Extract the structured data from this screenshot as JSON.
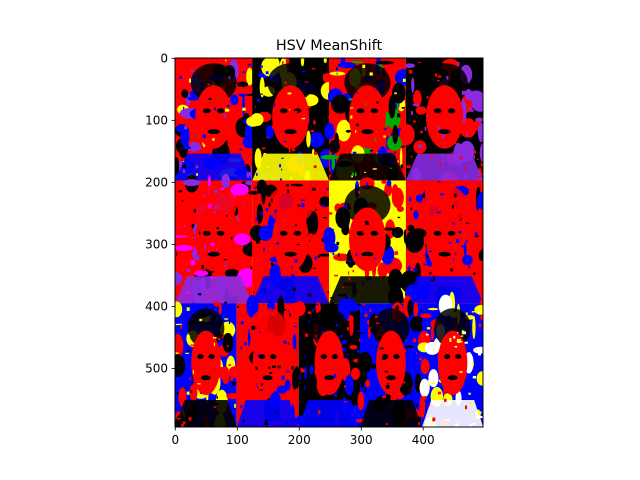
{
  "chart_data": {
    "type": "heatmap",
    "title": "HSV MeanShift",
    "xlabel": "",
    "ylabel": "",
    "image_shape": [
      595,
      497
    ],
    "xlim": [
      -0.5,
      496.5
    ],
    "ylim": [
      594.5,
      -0.5
    ],
    "xticks": [
      0,
      100,
      200,
      300,
      400
    ],
    "yticks": [
      0,
      100,
      200,
      300,
      400,
      500
    ],
    "grid": false,
    "palette": [
      "#ff0000",
      "#000000",
      "#ffff00",
      "#0000ff",
      "#8a2be2",
      "#00aa00",
      "#ff00ff",
      "#ffffff"
    ],
    "image_rows": [
      {
        "row": 1,
        "panels": [
          {
            "x": [
              0,
              124
            ],
            "y": [
              0,
              197
            ],
            "background": "#ff0000",
            "blobs": [
              "#ffff00",
              "#8a2be2",
              "#000000",
              "#0000ff"
            ]
          },
          {
            "x": [
              124,
              248
            ],
            "y": [
              0,
              197
            ],
            "background": "#000000",
            "blobs": [
              "#ff0000",
              "#0000ff",
              "#ffff00"
            ]
          },
          {
            "x": [
              248,
              372
            ],
            "y": [
              0,
              197
            ],
            "background": "#ff0000",
            "blobs": [
              "#ffff00",
              "#0000ff",
              "#00aa00",
              "#000000"
            ]
          },
          {
            "x": [
              372,
              497
            ],
            "y": [
              0,
              197
            ],
            "background": "#000000",
            "blobs": [
              "#ff0000",
              "#8a2be2"
            ]
          }
        ]
      },
      {
        "row": 2,
        "panels": [
          {
            "x": [
              0,
              124
            ],
            "y": [
              197,
              395
            ],
            "background": "#ff0000",
            "blobs": [
              "#000000",
              "#ff00ff",
              "#8a2be2"
            ]
          },
          {
            "x": [
              124,
              248
            ],
            "y": [
              197,
              395
            ],
            "background": "#ff0000",
            "blobs": [
              "#000000",
              "#0000ff"
            ]
          },
          {
            "x": [
              248,
              372
            ],
            "y": [
              197,
              395
            ],
            "background": "#ffff00",
            "blobs": [
              "#ff0000",
              "#0000ff",
              "#000000"
            ]
          },
          {
            "x": [
              372,
              497
            ],
            "y": [
              197,
              395
            ],
            "background": "#ff0000",
            "blobs": [
              "#000000",
              "#0000ff"
            ]
          }
        ]
      },
      {
        "row": 3,
        "panels": [
          {
            "x": [
              0,
              99
            ],
            "y": [
              395,
              595
            ],
            "background": "#0000ff",
            "blobs": [
              "#ffff00",
              "#ff0000",
              "#000000"
            ]
          },
          {
            "x": [
              99,
              199
            ],
            "y": [
              395,
              595
            ],
            "background": "#ff0000",
            "blobs": [
              "#000000",
              "#0000ff"
            ]
          },
          {
            "x": [
              199,
              298
            ],
            "y": [
              395,
              595
            ],
            "background": "#000000",
            "blobs": [
              "#ff0000",
              "#0000ff"
            ]
          },
          {
            "x": [
              298,
              398
            ],
            "y": [
              395,
              595
            ],
            "background": "#0000ff",
            "blobs": [
              "#ff0000",
              "#000000"
            ]
          },
          {
            "x": [
              398,
              497
            ],
            "y": [
              395,
              595
            ],
            "background": "#0000ff",
            "blobs": [
              "#ff0000",
              "#ffff00",
              "#ffffff"
            ]
          }
        ]
      }
    ]
  }
}
